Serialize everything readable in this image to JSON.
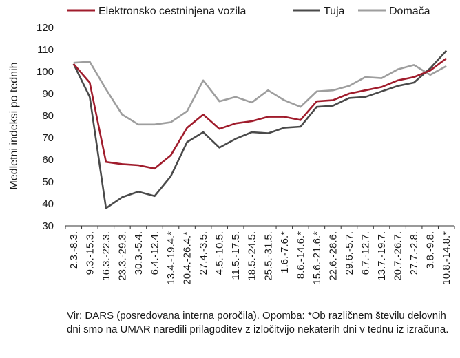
{
  "chart_data": {
    "type": "line",
    "title": "",
    "xlabel": "",
    "ylabel": "Medletni indeksi po tednih",
    "ylim": [
      30,
      120
    ],
    "yticks": [
      30,
      40,
      50,
      60,
      70,
      80,
      90,
      100,
      110,
      120
    ],
    "grid": false,
    "legend": "top",
    "categories": [
      "2.3.-8.3.",
      "9.3.-15.3.",
      "16.3.-22.3.",
      "23.3.-29.3.",
      "30.3.-5.4.",
      "6.4.-12.4.",
      "13.4.-19.4.*",
      "20.4.-26.4.*",
      "27.4.-3.5.",
      "4.5.-10.5.",
      "11.5.-17.5.",
      "18.5.-24.5.",
      "25.5.-31.5.",
      "1.6.-7.6.*",
      "8.6.-14.6.*",
      "15.6.-21.6.*",
      "22.6.-28.6.",
      "29.6.-5.7.",
      "6.7.-12.7.",
      "13.7.-19.7.",
      "20.7.-26.7.",
      "27.7.-2.8.",
      "3.8.-9.8.",
      "10.8.-14.8.*"
    ],
    "series": [
      {
        "name": "Elektronsko cestninjena vozila",
        "color": "#a01c2c",
        "values": [
          103.5,
          95,
          59,
          58,
          57.5,
          56,
          62,
          74.5,
          80.5,
          74,
          76.5,
          77.5,
          79.5,
          79.5,
          78,
          86.5,
          87,
          90,
          91.5,
          93,
          96,
          97.5,
          100.5,
          106
        ]
      },
      {
        "name": "Tuja",
        "color": "#4a4a4a",
        "values": [
          103.5,
          88.5,
          38,
          43,
          45.5,
          43.5,
          52.5,
          68,
          72.5,
          65.5,
          69.5,
          72.5,
          72,
          74.5,
          75,
          84,
          84.5,
          88,
          88.5,
          91,
          93.5,
          95,
          101.5,
          109.5
        ]
      },
      {
        "name": "Domača",
        "color": "#9e9e9e",
        "values": [
          104,
          104.5,
          92,
          80.5,
          76,
          76,
          77,
          82,
          96,
          86.5,
          88.5,
          86,
          91.5,
          87,
          84,
          91,
          91.5,
          93.5,
          97.5,
          97,
          101,
          103,
          98.5,
          102.5
        ]
      }
    ]
  },
  "note": "Vir: DARS (posredovana interna poročila). Opomba: *Ob različnem številu delovnih dni smo na UMAR naredili prilagoditev z izločitvijo nekaterih dni v tednu iz izračuna."
}
